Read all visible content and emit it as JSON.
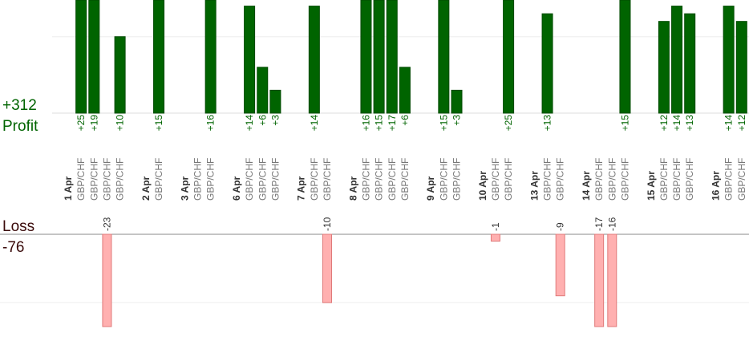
{
  "chart_data": {
    "type": "bar",
    "profit_total": {
      "value": 312,
      "label": "+312"
    },
    "profit_title": "Profit",
    "loss_title": "Loss",
    "loss_total": -76,
    "profit_color": "#006400",
    "loss_color": "#ffb0b0",
    "profit_ylim": [
      0,
      14.8
    ],
    "profit_yticks": [
      0,
      10
    ],
    "loss_ylim": [
      -13.5,
      0
    ],
    "loss_yticks": [
      0,
      -10
    ],
    "grid": true,
    "days": [
      {
        "date": "1 Apr",
        "trades": [
          {
            "symbol": "GBP/CHF",
            "value": 25,
            "label": "+25"
          },
          {
            "symbol": "GBP/CHF",
            "value": 19,
            "label": "+19"
          },
          {
            "symbol": "GBP/CHF",
            "value": -23,
            "label": "-23"
          },
          {
            "symbol": "GBP/CHF",
            "value": 10,
            "label": "+10"
          }
        ]
      },
      {
        "date": "2 Apr",
        "trades": [
          {
            "symbol": "GBP/CHF",
            "value": 15,
            "label": "+15"
          }
        ]
      },
      {
        "date": "3 Apr",
        "trades": [
          {
            "symbol": "GBP/CHF",
            "value": 0,
            "label": null
          },
          {
            "symbol": "GBP/CHF",
            "value": 16,
            "label": "+16"
          }
        ]
      },
      {
        "date": "6 Apr",
        "trades": [
          {
            "symbol": "GBP/CHF",
            "value": 14,
            "label": "+14"
          },
          {
            "symbol": "GBP/CHF",
            "value": 6,
            "label": "+6"
          },
          {
            "symbol": "GBP/CHF",
            "value": 3,
            "label": "+3"
          }
        ]
      },
      {
        "date": "7 Apr",
        "trades": [
          {
            "symbol": "GBP/CHF",
            "value": 14,
            "label": "+14"
          },
          {
            "symbol": "GBP/CHF",
            "value": -10,
            "label": "-10"
          }
        ]
      },
      {
        "date": "8 Apr",
        "trades": [
          {
            "symbol": "GBP/CHF",
            "value": 16,
            "label": "+16"
          },
          {
            "symbol": "GBP/CHF",
            "value": 15,
            "label": "+15"
          },
          {
            "symbol": "GBP/CHF",
            "value": 17,
            "label": "+17"
          },
          {
            "symbol": "GBP/CHF",
            "value": 6,
            "label": "+6"
          }
        ]
      },
      {
        "date": "9 Apr",
        "trades": [
          {
            "symbol": "GBP/CHF",
            "value": 15,
            "label": "+15"
          },
          {
            "symbol": "GBP/CHF",
            "value": 3,
            "label": "+3"
          }
        ]
      },
      {
        "date": "10 Apr",
        "trades": [
          {
            "symbol": "GBP/CHF",
            "value": -1,
            "label": "-1"
          },
          {
            "symbol": "GBP/CHF",
            "value": 25,
            "label": "+25"
          }
        ]
      },
      {
        "date": "13 Apr",
        "trades": [
          {
            "symbol": "GBP/CHF",
            "value": 13,
            "label": "+13"
          },
          {
            "symbol": "GBP/CHF",
            "value": -9,
            "label": "-9"
          }
        ]
      },
      {
        "date": "14 Apr",
        "trades": [
          {
            "symbol": "GBP/CHF",
            "value": -17,
            "label": "-17"
          },
          {
            "symbol": "GBP/CHF",
            "value": -16,
            "label": "-16"
          },
          {
            "symbol": "GBP/CHF",
            "value": 15,
            "label": "+15"
          }
        ]
      },
      {
        "date": "15 Apr",
        "trades": [
          {
            "symbol": "GBP/CHF",
            "value": 12,
            "label": "+12"
          },
          {
            "symbol": "GBP/CHF",
            "value": 14,
            "label": "+14"
          },
          {
            "symbol": "GBP/CHF",
            "value": 13,
            "label": "+13"
          }
        ]
      },
      {
        "date": "16 Apr",
        "trades": [
          {
            "symbol": "GBP/CHF",
            "value": 14,
            "label": "+14"
          },
          {
            "symbol": "GBP/CHF",
            "value": 12,
            "label": "+12"
          }
        ]
      }
    ]
  }
}
